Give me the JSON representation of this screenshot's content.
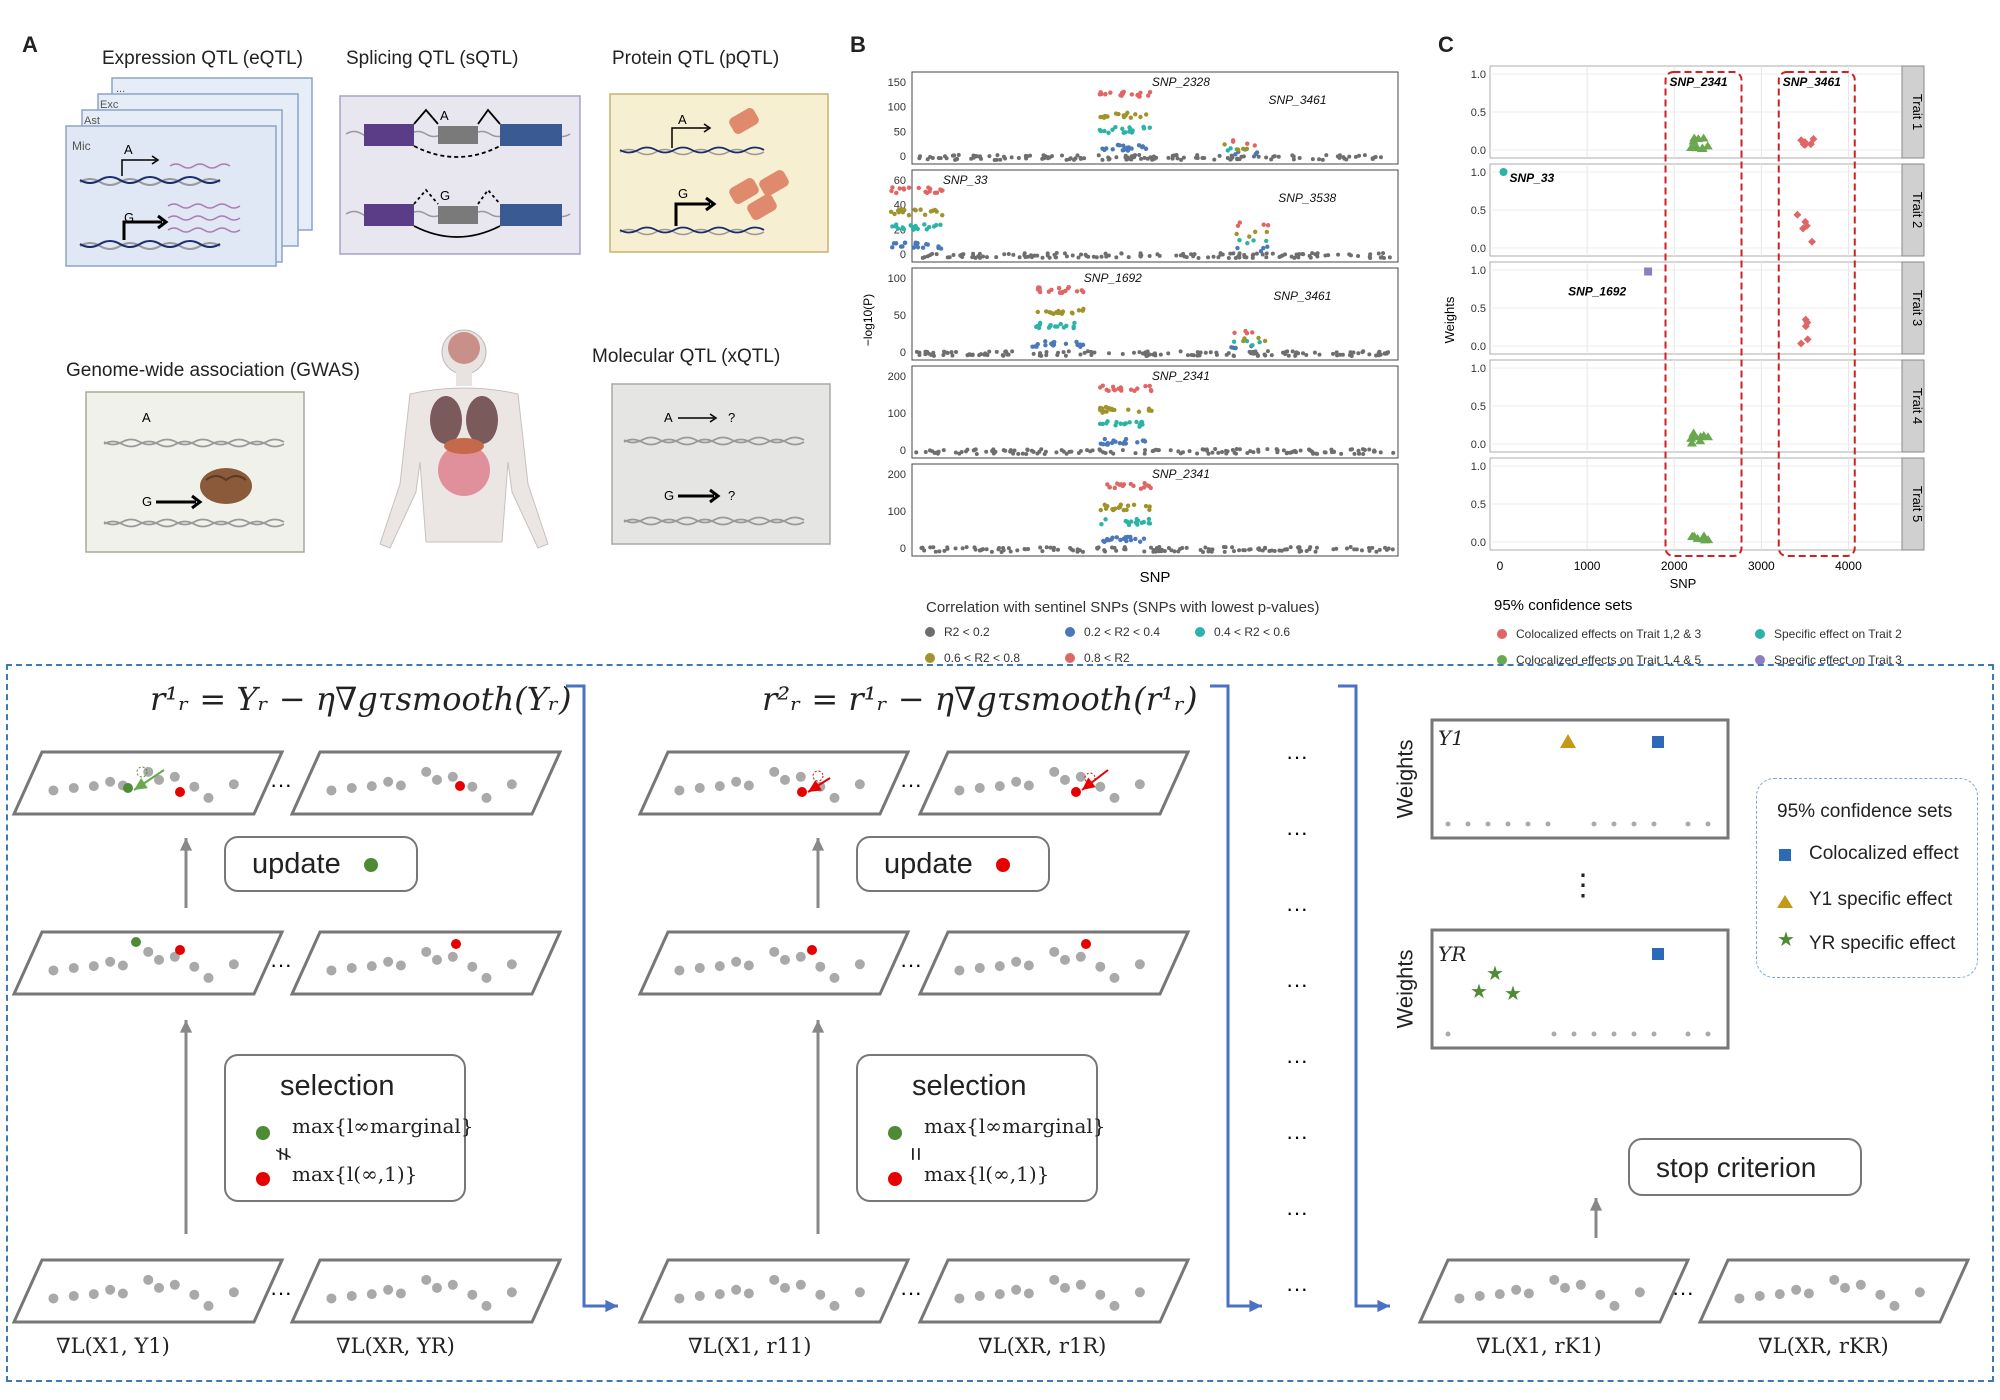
{
  "panel_a": {
    "label": "A",
    "eqtl_title": "Expression QTL (eQTL)",
    "sqtl_title": "Splicing QTL (sQTL)",
    "pqtl_title": "Protein QTL (pQTL)",
    "gwas_title": "Genome-wide association (GWAS)",
    "xqtl_title": "Molecular QTL (xQTL)",
    "cell_types": [
      "...",
      "Exc",
      "Ast",
      "Mic"
    ],
    "allele_a": "A",
    "allele_g": "G",
    "question": "?"
  },
  "panel_b": {
    "label": "B",
    "ylabel": "−log10(P)",
    "xlabel": "SNP",
    "legend_title": "Correlation with sentinel SNPs (SNPs with lowest p-values)",
    "legend_items": [
      {
        "label": "R2 < 0.2",
        "color": "#6e6e6e"
      },
      {
        "label": "0.2 < R2 < 0.4",
        "color": "#4a78b8"
      },
      {
        "label": "0.4 < R2 < 0.6",
        "color": "#2bb3a8"
      },
      {
        "label": "0.6 < R2 < 0.8",
        "color": "#a0932a"
      },
      {
        "label": "0.8 < R2",
        "color": "#e06666"
      }
    ],
    "facets": [
      {
        "yticks": [
          "150",
          "100",
          "50",
          "0"
        ],
        "labels": [
          "SNP_2328",
          "SNP_3461"
        ]
      },
      {
        "yticks": [
          "60",
          "40",
          "20",
          "0"
        ],
        "labels": [
          "SNP_33",
          "SNP_3538"
        ]
      },
      {
        "yticks": [
          "100",
          "50",
          "0"
        ],
        "labels": [
          "SNP_1692",
          "SNP_3461"
        ]
      },
      {
        "yticks": [
          "200",
          "100",
          "0"
        ],
        "labels": [
          "SNP_2341"
        ]
      },
      {
        "yticks": [
          "200",
          "100",
          "0"
        ],
        "labels": [
          "SNP_2341"
        ]
      }
    ]
  },
  "panel_c": {
    "label": "C",
    "ylabel": "Weights",
    "xlabel": "SNP",
    "xticks": [
      "0",
      "1000",
      "2000",
      "3000",
      "4000"
    ],
    "yticks": [
      "1.0",
      "0.5",
      "0.0"
    ],
    "strips": [
      "Trait 1",
      "Trait 2",
      "Trait 3",
      "Trait 4",
      "Trait 5"
    ],
    "box_labels": [
      "SNP_2341",
      "SNP_3461"
    ],
    "point_labels": [
      "SNP_33",
      "SNP_1692"
    ],
    "legend_title": "95% confidence sets",
    "legend_items": [
      {
        "label": "Colocalized effects on Trait 1,2 & 3",
        "color": "#e06666"
      },
      {
        "label": "Specific effect on Trait 2",
        "color": "#2bb3a8"
      },
      {
        "label": "Colocalized effects on Trait 1,4 & 5",
        "color": "#6aa84f"
      },
      {
        "label": "Specific effect on Trait 3",
        "color": "#8e7cc3"
      }
    ]
  },
  "bottom": {
    "eq1": "r¹ᵣ = Yᵣ − η∇gτsmooth(Yᵣ)",
    "eq2": "r²ᵣ = r¹ᵣ − η∇gτsmooth(r¹ᵣ)",
    "update_label": "update",
    "selection_label": "selection",
    "sel_line1": "max{l∞marginal}",
    "sel_line2": "max{l(∞,1)}",
    "not_equal": "≠",
    "equal": "=",
    "dots": "···",
    "vdots": "⋮",
    "grad1a": "∇L(X1, Y1)",
    "grad1b": "∇L(XR, YR)",
    "grad2a": "∇L(X1, r11)",
    "grad2b": "∇L(XR, r1R)",
    "grad3a": "∇L(X1, rK1)",
    "grad3b": "∇L(XR, rKR)",
    "weights_label": "Weights",
    "y1_label": "Y1",
    "yr_label": "YR",
    "stop_label": "stop criterion",
    "legend_title": "95% confidence sets",
    "legend_items": [
      "Colocalized effect",
      "Y1 specific effect",
      "YR specific effect"
    ]
  }
}
